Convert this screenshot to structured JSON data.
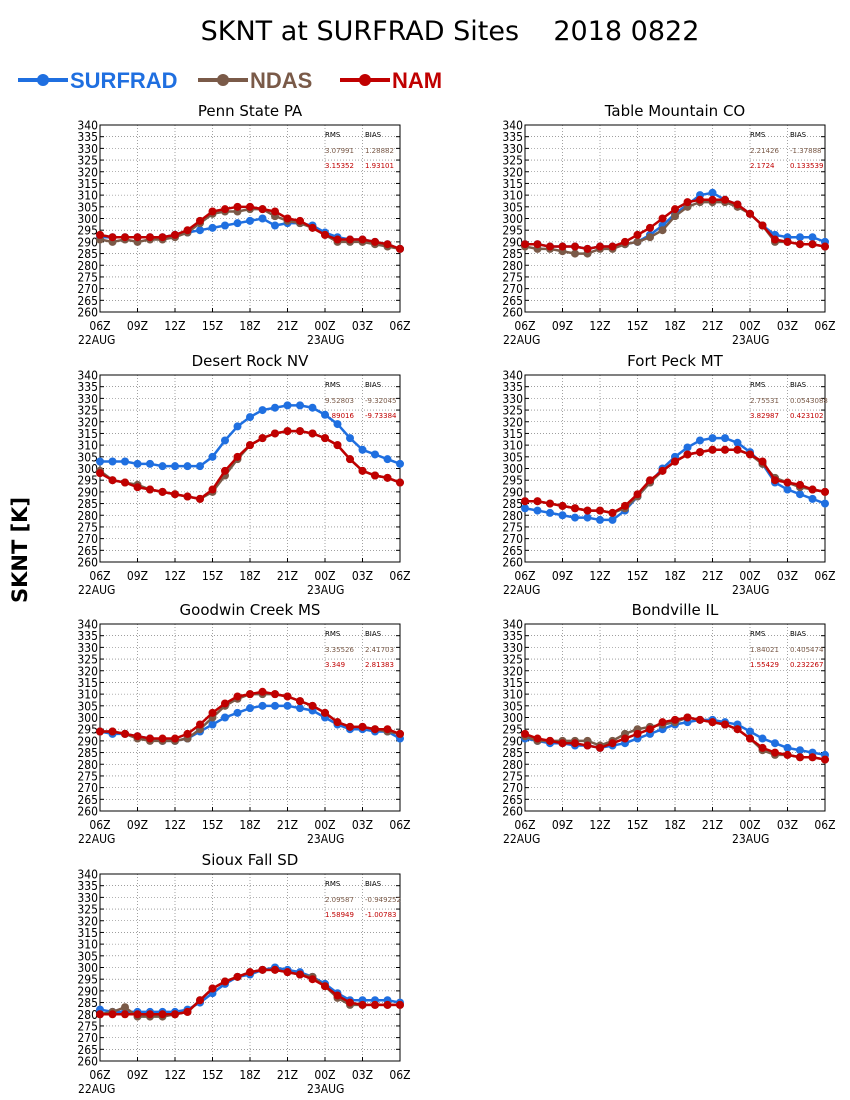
{
  "title": "SKNT at SURFRAD Sites    2018 0822",
  "ylabel": "SKNT [K]",
  "colors": {
    "SURFRAD": "#1f6fe0",
    "NDAS": "#7a5a48",
    "NAM": "#c00000",
    "grid": "#666666"
  },
  "legend": [
    {
      "name": "SURFRAD",
      "color": "#1f6fe0"
    },
    {
      "name": "NDAS",
      "color": "#7a5a48"
    },
    {
      "name": "NAM",
      "color": "#c00000"
    }
  ],
  "stats_headers": {
    "rms": "RMS",
    "bias": "BIAS"
  },
  "chart_data": [
    {
      "type": "line",
      "title": "Penn State PA",
      "ylim": [
        260,
        340
      ],
      "yticks": [
        260,
        265,
        270,
        275,
        280,
        285,
        290,
        295,
        300,
        305,
        310,
        315,
        320,
        325,
        330,
        335,
        340
      ],
      "xticks": [
        "06Z",
        "09Z",
        "12Z",
        "15Z",
        "18Z",
        "21Z",
        "00Z",
        "03Z",
        "06Z"
      ],
      "xdates": [
        "22AUG",
        "23AUG"
      ],
      "x_hours": [
        0,
        1,
        2,
        3,
        4,
        5,
        6,
        7,
        8,
        9,
        10,
        11,
        12,
        13,
        14,
        15,
        16,
        17,
        18,
        19,
        20,
        21,
        22,
        23,
        24
      ],
      "stats": {
        "ndas": [
          "3.07991",
          "1.28882"
        ],
        "nam": [
          "3.15352",
          "1.93101"
        ]
      },
      "series": [
        {
          "name": "SURFRAD",
          "values": [
            292,
            292,
            292,
            292,
            292,
            292,
            293,
            294,
            295,
            296,
            297,
            298,
            299,
            300,
            297,
            298,
            298,
            297,
            294,
            292,
            291,
            291,
            290,
            289,
            287
          ]
        },
        {
          "name": "NDAS",
          "values": [
            291,
            290,
            291,
            290,
            291,
            291,
            292,
            294,
            298,
            302,
            303,
            303,
            304,
            304,
            301,
            299,
            298,
            296,
            293,
            290,
            290,
            290,
            289,
            288,
            287
          ]
        },
        {
          "name": "NAM",
          "values": [
            293,
            292,
            292,
            292,
            292,
            292,
            293,
            295,
            299,
            303,
            304,
            305,
            305,
            304,
            303,
            300,
            299,
            296,
            293,
            291,
            291,
            291,
            290,
            289,
            287
          ]
        }
      ]
    },
    {
      "type": "line",
      "title": "Table Mountain CO",
      "ylim": [
        260,
        340
      ],
      "yticks": [
        260,
        265,
        270,
        275,
        280,
        285,
        290,
        295,
        300,
        305,
        310,
        315,
        320,
        325,
        330,
        335,
        340
      ],
      "xticks": [
        "06Z",
        "09Z",
        "12Z",
        "15Z",
        "18Z",
        "21Z",
        "00Z",
        "03Z",
        "06Z"
      ],
      "xdates": [
        "22AUG",
        "23AUG"
      ],
      "x_hours": [
        0,
        1,
        2,
        3,
        4,
        5,
        6,
        7,
        8,
        9,
        10,
        11,
        12,
        13,
        14,
        15,
        16,
        17,
        18,
        19,
        20,
        21,
        22,
        23,
        24
      ],
      "stats": {
        "ndas": [
          "2.21426",
          "-1.37888"
        ],
        "nam": [
          "2.1724",
          "0.133539"
        ]
      },
      "series": [
        {
          "name": "SURFRAD",
          "values": [
            289,
            289,
            288,
            288,
            288,
            287,
            288,
            288,
            289,
            290,
            293,
            297,
            302,
            306,
            310,
            311,
            308,
            306,
            302,
            297,
            293,
            292,
            292,
            292,
            290
          ]
        },
        {
          "name": "NDAS",
          "values": [
            288,
            287,
            287,
            286,
            285,
            285,
            287,
            287,
            289,
            290,
            292,
            295,
            301,
            305,
            307,
            307,
            307,
            305,
            302,
            297,
            290,
            290,
            289,
            289,
            288
          ]
        },
        {
          "name": "NAM",
          "values": [
            289,
            289,
            288,
            288,
            288,
            287,
            288,
            288,
            290,
            293,
            296,
            300,
            304,
            307,
            308,
            308,
            308,
            306,
            302,
            297,
            291,
            290,
            289,
            289,
            288
          ]
        }
      ]
    },
    {
      "type": "line",
      "title": "Desert Rock NV",
      "ylim": [
        260,
        340
      ],
      "yticks": [
        260,
        265,
        270,
        275,
        280,
        285,
        290,
        295,
        300,
        305,
        310,
        315,
        320,
        325,
        330,
        335,
        340
      ],
      "xticks": [
        "06Z",
        "09Z",
        "12Z",
        "15Z",
        "18Z",
        "21Z",
        "00Z",
        "03Z",
        "06Z"
      ],
      "xdates": [
        "22AUG",
        "23AUG"
      ],
      "x_hours": [
        0,
        1,
        2,
        3,
        4,
        5,
        6,
        7,
        8,
        9,
        10,
        11,
        12,
        13,
        14,
        15,
        16,
        17,
        18,
        19,
        20,
        21,
        22,
        23,
        24
      ],
      "stats": {
        "ndas": [
          "9.52803",
          "-9.32045"
        ],
        "nam": [
          "9.89016",
          "-9.73384"
        ]
      },
      "series": [
        {
          "name": "SURFRAD",
          "values": [
            303,
            303,
            303,
            302,
            302,
            301,
            301,
            301,
            301,
            305,
            312,
            318,
            322,
            325,
            326,
            327,
            327,
            326,
            323,
            319,
            313,
            308,
            306,
            304,
            302
          ]
        },
        {
          "name": "NDAS",
          "values": [
            299,
            295,
            294,
            293,
            291,
            290,
            289,
            288,
            287,
            290,
            297,
            304,
            310,
            313,
            315,
            316,
            316,
            315,
            313,
            310,
            304,
            299,
            297,
            296,
            294
          ]
        },
        {
          "name": "NAM",
          "values": [
            298,
            295,
            294,
            292,
            291,
            290,
            289,
            288,
            287,
            291,
            299,
            305,
            310,
            313,
            315,
            316,
            316,
            315,
            313,
            310,
            304,
            299,
            297,
            296,
            294
          ]
        }
      ]
    },
    {
      "type": "line",
      "title": "Fort Peck MT",
      "ylim": [
        260,
        340
      ],
      "yticks": [
        260,
        265,
        270,
        275,
        280,
        285,
        290,
        295,
        300,
        305,
        310,
        315,
        320,
        325,
        330,
        335,
        340
      ],
      "xticks": [
        "06Z",
        "09Z",
        "12Z",
        "15Z",
        "18Z",
        "21Z",
        "00Z",
        "03Z",
        "06Z"
      ],
      "xdates": [
        "22AUG",
        "23AUG"
      ],
      "x_hours": [
        0,
        1,
        2,
        3,
        4,
        5,
        6,
        7,
        8,
        9,
        10,
        11,
        12,
        13,
        14,
        15,
        16,
        17,
        18,
        19,
        20,
        21,
        22,
        23,
        24
      ],
      "stats": {
        "ndas": [
          "2.75531",
          "0.0543088"
        ],
        "nam": [
          "3.82987",
          "0.423102"
        ]
      },
      "series": [
        {
          "name": "SURFRAD",
          "values": [
            283,
            282,
            281,
            280,
            279,
            279,
            278,
            278,
            282,
            288,
            294,
            300,
            305,
            309,
            312,
            313,
            313,
            311,
            307,
            302,
            294,
            291,
            289,
            287,
            285
          ]
        },
        {
          "name": "NDAS",
          "values": [
            286,
            286,
            285,
            284,
            283,
            282,
            282,
            281,
            283,
            288,
            294,
            299,
            303,
            306,
            307,
            308,
            308,
            308,
            306,
            302,
            296,
            294,
            292,
            291,
            290
          ]
        },
        {
          "name": "NAM",
          "values": [
            286,
            286,
            285,
            284,
            283,
            282,
            282,
            281,
            284,
            289,
            295,
            299,
            303,
            306,
            307,
            308,
            308,
            308,
            306,
            303,
            295,
            294,
            293,
            291,
            290
          ]
        }
      ]
    },
    {
      "type": "line",
      "title": "Goodwin Creek MS",
      "ylim": [
        260,
        340
      ],
      "yticks": [
        260,
        265,
        270,
        275,
        280,
        285,
        290,
        295,
        300,
        305,
        310,
        315,
        320,
        325,
        330,
        335,
        340
      ],
      "xticks": [
        "06Z",
        "09Z",
        "12Z",
        "15Z",
        "18Z",
        "21Z",
        "00Z",
        "03Z",
        "06Z"
      ],
      "xdates": [
        "22AUG",
        "23AUG"
      ],
      "x_hours": [
        0,
        1,
        2,
        3,
        4,
        5,
        6,
        7,
        8,
        9,
        10,
        11,
        12,
        13,
        14,
        15,
        16,
        17,
        18,
        19,
        20,
        21,
        22,
        23,
        24
      ],
      "stats": {
        "ndas": [
          "3.35526",
          "2.41703"
        ],
        "nam": [
          "3.349",
          "2.81383"
        ]
      },
      "series": [
        {
          "name": "SURFRAD",
          "values": [
            294,
            293,
            293,
            292,
            291,
            290,
            290,
            291,
            294,
            297,
            300,
            302,
            304,
            305,
            305,
            305,
            304,
            303,
            300,
            297,
            295,
            295,
            294,
            294,
            291
          ]
        },
        {
          "name": "NDAS",
          "values": [
            294,
            294,
            293,
            291,
            290,
            290,
            290,
            291,
            295,
            300,
            305,
            308,
            310,
            310,
            310,
            309,
            307,
            305,
            302,
            298,
            296,
            296,
            295,
            294,
            293
          ]
        },
        {
          "name": "NAM",
          "values": [
            294,
            294,
            293,
            292,
            291,
            291,
            291,
            293,
            297,
            302,
            306,
            309,
            310,
            311,
            310,
            309,
            307,
            305,
            302,
            298,
            296,
            296,
            295,
            295,
            293
          ]
        }
      ]
    },
    {
      "type": "line",
      "title": "Bondville IL",
      "ylim": [
        260,
        340
      ],
      "yticks": [
        260,
        265,
        270,
        275,
        280,
        285,
        290,
        295,
        300,
        305,
        310,
        315,
        320,
        325,
        330,
        335,
        340
      ],
      "xticks": [
        "06Z",
        "09Z",
        "12Z",
        "15Z",
        "18Z",
        "21Z",
        "00Z",
        "03Z",
        "06Z"
      ],
      "xdates": [
        "22AUG",
        "23AUG"
      ],
      "x_hours": [
        0,
        1,
        2,
        3,
        4,
        5,
        6,
        7,
        8,
        9,
        10,
        11,
        12,
        13,
        14,
        15,
        16,
        17,
        18,
        19,
        20,
        21,
        22,
        23,
        24
      ],
      "stats": {
        "ndas": [
          "1.84021",
          "0.405474"
        ],
        "nam": [
          "1.55429",
          "0.232267"
        ]
      },
      "series": [
        {
          "name": "SURFRAD",
          "values": [
            291,
            290,
            289,
            289,
            288,
            288,
            287,
            288,
            289,
            291,
            293,
            295,
            297,
            298,
            299,
            299,
            298,
            297,
            294,
            291,
            289,
            287,
            286,
            285,
            284
          ]
        },
        {
          "name": "NDAS",
          "values": [
            292,
            290,
            290,
            290,
            290,
            290,
            288,
            290,
            293,
            295,
            296,
            297,
            298,
            300,
            299,
            298,
            297,
            295,
            291,
            286,
            284,
            284,
            283,
            283,
            282
          ]
        },
        {
          "name": "NAM",
          "values": [
            293,
            291,
            290,
            289,
            289,
            288,
            287,
            289,
            291,
            293,
            295,
            298,
            299,
            300,
            299,
            298,
            297,
            295,
            291,
            287,
            285,
            284,
            283,
            283,
            282
          ]
        }
      ]
    },
    {
      "type": "line",
      "title": "Sioux Fall SD",
      "ylim": [
        260,
        340
      ],
      "yticks": [
        260,
        265,
        270,
        275,
        280,
        285,
        290,
        295,
        300,
        305,
        310,
        315,
        320,
        325,
        330,
        335,
        340
      ],
      "xticks": [
        "06Z",
        "09Z",
        "12Z",
        "15Z",
        "18Z",
        "21Z",
        "00Z",
        "03Z",
        "06Z"
      ],
      "xdates": [
        "22AUG",
        "23AUG"
      ],
      "x_hours": [
        0,
        1,
        2,
        3,
        4,
        5,
        6,
        7,
        8,
        9,
        10,
        11,
        12,
        13,
        14,
        15,
        16,
        17,
        18,
        19,
        20,
        21,
        22,
        23,
        24
      ],
      "stats": {
        "ndas": [
          "2.09587",
          "-0.949252"
        ],
        "nam": [
          "1.58949",
          "-1.00783"
        ]
      },
      "series": [
        {
          "name": "SURFRAD",
          "values": [
            282,
            281,
            281,
            281,
            281,
            281,
            281,
            282,
            285,
            289,
            293,
            296,
            297,
            299,
            300,
            299,
            298,
            296,
            293,
            289,
            286,
            286,
            286,
            286,
            285
          ]
        },
        {
          "name": "NDAS",
          "values": [
            280,
            281,
            283,
            279,
            279,
            279,
            280,
            281,
            286,
            291,
            294,
            296,
            298,
            299,
            299,
            298,
            297,
            296,
            292,
            287,
            284,
            284,
            284,
            284,
            284
          ]
        },
        {
          "name": "NAM",
          "values": [
            280,
            280,
            280,
            280,
            280,
            280,
            280,
            281,
            286,
            291,
            294,
            296,
            298,
            299,
            299,
            298,
            297,
            295,
            292,
            288,
            285,
            284,
            284,
            284,
            284
          ]
        }
      ]
    }
  ]
}
